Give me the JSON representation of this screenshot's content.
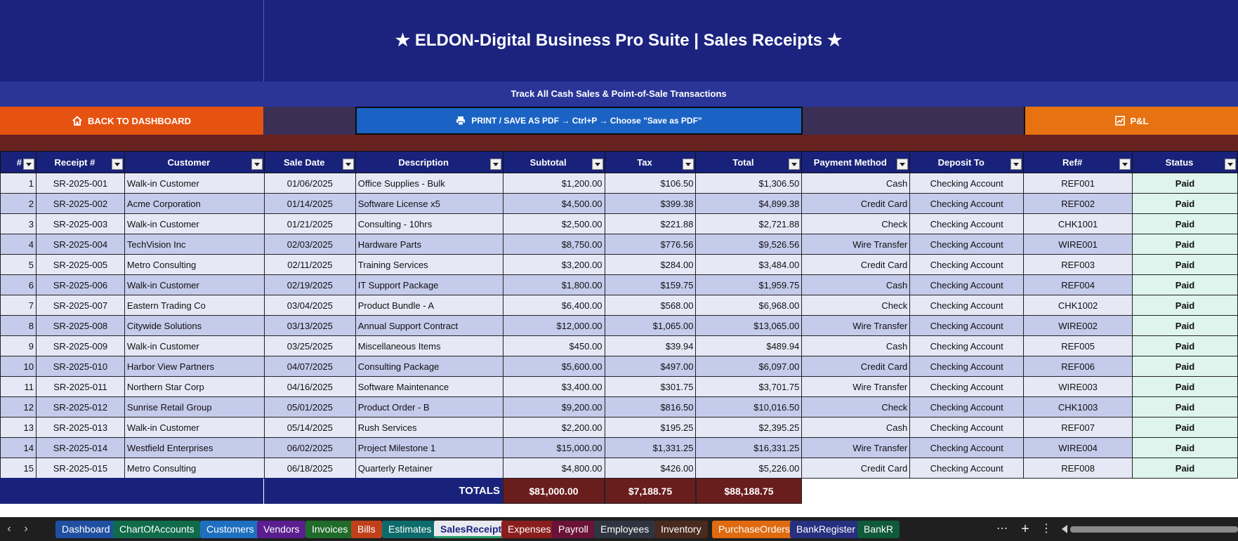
{
  "header": {
    "title": "★  ELDON-Digital Business Pro Suite  |  Sales Receipts  ★",
    "subtitle": "Track All Cash Sales & Point-of-Sale Transactions"
  },
  "buttons": {
    "back": "BACK TO DASHBOARD",
    "print": "PRINT / SAVE AS PDF → Ctrl+P → Choose \"Save as PDF\"",
    "pl": "P&L"
  },
  "columns": [
    "#",
    "Receipt #",
    "Customer",
    "Sale Date",
    "Description",
    "Subtotal",
    "Tax",
    "Total",
    "Payment Method",
    "Deposit To",
    "Ref#",
    "Status"
  ],
  "rows": [
    {
      "n": "1",
      "receipt": "SR-2025-001",
      "customer": "Walk-in Customer",
      "date": "01/06/2025",
      "desc": "Office Supplies - Bulk",
      "subtotal": "$1,200.00",
      "tax": "$106.50",
      "total": "$1,306.50",
      "method": "Cash",
      "deposit": "Checking Account",
      "ref": "REF001",
      "status": "Paid"
    },
    {
      "n": "2",
      "receipt": "SR-2025-002",
      "customer": "Acme Corporation",
      "date": "01/14/2025",
      "desc": "Software License x5",
      "subtotal": "$4,500.00",
      "tax": "$399.38",
      "total": "$4,899.38",
      "method": "Credit Card",
      "deposit": "Checking Account",
      "ref": "REF002",
      "status": "Paid"
    },
    {
      "n": "3",
      "receipt": "SR-2025-003",
      "customer": "Walk-in Customer",
      "date": "01/21/2025",
      "desc": "Consulting - 10hrs",
      "subtotal": "$2,500.00",
      "tax": "$221.88",
      "total": "$2,721.88",
      "method": "Check",
      "deposit": "Checking Account",
      "ref": "CHK1001",
      "status": "Paid"
    },
    {
      "n": "4",
      "receipt": "SR-2025-004",
      "customer": "TechVision Inc",
      "date": "02/03/2025",
      "desc": "Hardware Parts",
      "subtotal": "$8,750.00",
      "tax": "$776.56",
      "total": "$9,526.56",
      "method": "Wire Transfer",
      "deposit": "Checking Account",
      "ref": "WIRE001",
      "status": "Paid"
    },
    {
      "n": "5",
      "receipt": "SR-2025-005",
      "customer": "Metro Consulting",
      "date": "02/11/2025",
      "desc": "Training Services",
      "subtotal": "$3,200.00",
      "tax": "$284.00",
      "total": "$3,484.00",
      "method": "Credit Card",
      "deposit": "Checking Account",
      "ref": "REF003",
      "status": "Paid"
    },
    {
      "n": "6",
      "receipt": "SR-2025-006",
      "customer": "Walk-in Customer",
      "date": "02/19/2025",
      "desc": "IT Support Package",
      "subtotal": "$1,800.00",
      "tax": "$159.75",
      "total": "$1,959.75",
      "method": "Cash",
      "deposit": "Checking Account",
      "ref": "REF004",
      "status": "Paid"
    },
    {
      "n": "7",
      "receipt": "SR-2025-007",
      "customer": "Eastern Trading Co",
      "date": "03/04/2025",
      "desc": "Product Bundle - A",
      "subtotal": "$6,400.00",
      "tax": "$568.00",
      "total": "$6,968.00",
      "method": "Check",
      "deposit": "Checking Account",
      "ref": "CHK1002",
      "status": "Paid"
    },
    {
      "n": "8",
      "receipt": "SR-2025-008",
      "customer": "Citywide Solutions",
      "date": "03/13/2025",
      "desc": "Annual Support Contract",
      "subtotal": "$12,000.00",
      "tax": "$1,065.00",
      "total": "$13,065.00",
      "method": "Wire Transfer",
      "deposit": "Checking Account",
      "ref": "WIRE002",
      "status": "Paid"
    },
    {
      "n": "9",
      "receipt": "SR-2025-009",
      "customer": "Walk-in Customer",
      "date": "03/25/2025",
      "desc": "Miscellaneous Items",
      "subtotal": "$450.00",
      "tax": "$39.94",
      "total": "$489.94",
      "method": "Cash",
      "deposit": "Checking Account",
      "ref": "REF005",
      "status": "Paid"
    },
    {
      "n": "10",
      "receipt": "SR-2025-010",
      "customer": "Harbor View Partners",
      "date": "04/07/2025",
      "desc": "Consulting Package",
      "subtotal": "$5,600.00",
      "tax": "$497.00",
      "total": "$6,097.00",
      "method": "Credit Card",
      "deposit": "Checking Account",
      "ref": "REF006",
      "status": "Paid"
    },
    {
      "n": "11",
      "receipt": "SR-2025-011",
      "customer": "Northern Star Corp",
      "date": "04/16/2025",
      "desc": "Software Maintenance",
      "subtotal": "$3,400.00",
      "tax": "$301.75",
      "total": "$3,701.75",
      "method": "Wire Transfer",
      "deposit": "Checking Account",
      "ref": "WIRE003",
      "status": "Paid"
    },
    {
      "n": "12",
      "receipt": "SR-2025-012",
      "customer": "Sunrise Retail Group",
      "date": "05/01/2025",
      "desc": "Product Order - B",
      "subtotal": "$9,200.00",
      "tax": "$816.50",
      "total": "$10,016.50",
      "method": "Check",
      "deposit": "Checking Account",
      "ref": "CHK1003",
      "status": "Paid"
    },
    {
      "n": "13",
      "receipt": "SR-2025-013",
      "customer": "Walk-in Customer",
      "date": "05/14/2025",
      "desc": "Rush Services",
      "subtotal": "$2,200.00",
      "tax": "$195.25",
      "total": "$2,395.25",
      "method": "Cash",
      "deposit": "Checking Account",
      "ref": "REF007",
      "status": "Paid"
    },
    {
      "n": "14",
      "receipt": "SR-2025-014",
      "customer": "Westfield Enterprises",
      "date": "06/02/2025",
      "desc": "Project Milestone 1",
      "subtotal": "$15,000.00",
      "tax": "$1,331.25",
      "total": "$16,331.25",
      "method": "Wire Transfer",
      "deposit": "Checking Account",
      "ref": "WIRE004",
      "status": "Paid"
    },
    {
      "n": "15",
      "receipt": "SR-2025-015",
      "customer": "Metro Consulting",
      "date": "06/18/2025",
      "desc": "Quarterly Retainer",
      "subtotal": "$4,800.00",
      "tax": "$426.00",
      "total": "$5,226.00",
      "method": "Credit Card",
      "deposit": "Checking Account",
      "ref": "REF008",
      "status": "Paid"
    }
  ],
  "totals": {
    "label": "TOTALS",
    "subtotal": "$81,000.00",
    "tax": "$7,188.75",
    "total": "$88,188.75"
  },
  "tabs": [
    {
      "label": "Dashboard",
      "color": "#1f4fa0"
    },
    {
      "label": "ChartOfAccounts",
      "color": "#0f6b4a"
    },
    {
      "label": "Customers",
      "color": "#1e6fc0"
    },
    {
      "label": "Vendors",
      "color": "#5a1e8f"
    },
    {
      "label": "Invoices",
      "color": "#1f6b2a"
    },
    {
      "label": "Bills",
      "color": "#c0401a"
    },
    {
      "label": "Estimates",
      "color": "#0d6b6b"
    },
    {
      "label": "SalesReceipts",
      "color": "#e9eaf0",
      "active": true
    },
    {
      "label": "Expenses",
      "color": "#8a1e1e"
    },
    {
      "label": "Payroll",
      "color": "#6b1238"
    },
    {
      "label": "Employees",
      "color": "#2f3540"
    },
    {
      "label": "Inventory",
      "color": "#4a2a1e"
    },
    {
      "label": "PurchaseOrders",
      "color": "#e06a10"
    },
    {
      "label": "BankRegister",
      "color": "#26307f"
    },
    {
      "label": "BankR",
      "color": "#0f5a3a"
    }
  ],
  "icons": {
    "back": "home-icon",
    "print": "printer-icon",
    "pl": "chart-icon"
  },
  "colors": {
    "banner": "#1b237f",
    "back": "#e65310",
    "print": "#1a63c4",
    "pl": "#e77211",
    "totals": "#6a1d1d",
    "status": "#1f6b2a"
  }
}
